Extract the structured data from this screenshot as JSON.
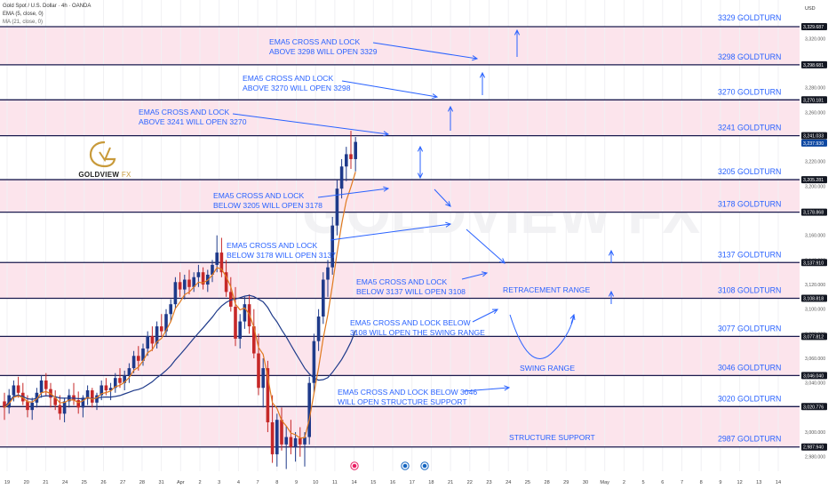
{
  "header": {
    "title": "Gold Spot / U.S. Dollar · 4h · OANDA",
    "ema": "EMA (5, close, 0)",
    "ma": "MA (21, close, 0)"
  },
  "logo": {
    "main": "GOLDVIEW",
    "suffix": "FX"
  },
  "watermark": "GOLDVIEW FX",
  "currency_label": "USD",
  "colors": {
    "zone_fill": "#fce4ec",
    "level_line": "#1a1a4e",
    "annotation": "#2962ff",
    "candle_up": "#1e3a8a",
    "candle_down": "#c62828",
    "ema": "#e07a1f",
    "ma": "#1e3a8a",
    "price_tag": "#0d47a1",
    "tag_dark": "#131722"
  },
  "chart_data": {
    "type": "candlestick",
    "ylim": [
      2970,
      3345
    ],
    "y_ticks": [
      2980,
      3000,
      3020,
      3040,
      3060,
      3080,
      3100,
      3120,
      3140,
      3160,
      3180,
      3200,
      3220,
      3240,
      3260,
      3280,
      3300,
      3320
    ],
    "y_tick_labels": [
      "2,980.000",
      "3,000.000",
      "3,020.000",
      "3,040.000",
      "3,060.000",
      "3,080.000",
      "3,100.000",
      "3,120.000",
      "3,140.000",
      "3,160.000",
      "3,180.000",
      "3,200.000",
      "3,220.000",
      "3,240.000",
      "3,260.000",
      "3,280.000",
      "3,300.000",
      "3,320.000"
    ],
    "x_labels": [
      "19",
      "20",
      "21",
      "24",
      "25",
      "26",
      "27",
      "28",
      "31",
      "Apr",
      "2",
      "3",
      "4",
      "7",
      "8",
      "9",
      "10",
      "11",
      "14",
      "15",
      "16",
      "17",
      "18",
      "21",
      "22",
      "23",
      "24",
      "25",
      "28",
      "29",
      "30",
      "May",
      "2",
      "5",
      "6",
      "7",
      "8",
      "9",
      "12",
      "13",
      "14"
    ],
    "levels": [
      {
        "price": 3329.687,
        "tag": "3,329.687",
        "label": "3329 GOLDTURN"
      },
      {
        "price": 3298.681,
        "tag": "3,298.681",
        "label": "3298 GOLDTURN"
      },
      {
        "price": 3270.181,
        "tag": "3,270.181",
        "label": "3270 GOLDTURN"
      },
      {
        "price": 3241.033,
        "tag": "3,241.033",
        "label": "3241 GOLDTURN"
      },
      {
        "price": 3205.281,
        "tag": "3,205.281",
        "label": "3205 GOLDTURN"
      },
      {
        "price": 3178.868,
        "tag": "3,178.868",
        "label": "3178 GOLDTURN"
      },
      {
        "price": 3137.91,
        "tag": "3,137.910",
        "label": "3137 GOLDTURN"
      },
      {
        "price": 3108.818,
        "tag": "3,108.818",
        "label": "3108 GOLDTURN"
      },
      {
        "price": 3077.812,
        "tag": "3,077.812",
        "label": "3077 GOLDTURN"
      },
      {
        "price": 3046.04,
        "tag": "3,046.040",
        "label": "3046 GOLDTURN"
      },
      {
        "price": 3020.776,
        "tag": "3,020.776",
        "label": "3020 GOLDTURN"
      },
      {
        "price": 2987.94,
        "tag": "2,987.940",
        "label": "2987 GOLDTURN"
      }
    ],
    "zones": [
      [
        3298.681,
        3329.687
      ],
      [
        3241.033,
        3270.181
      ],
      [
        3178.868,
        3205.281
      ],
      [
        3108.818,
        3137.91
      ],
      [
        3046.04,
        3077.812
      ],
      [
        2987.94,
        3020.776
      ]
    ],
    "current_price": {
      "value": 3237.93,
      "tag": "3,237.930"
    },
    "zone_labels": [
      "RETRACEMENT RANGE",
      "SWING RANGE",
      "STRUCTURE SUPPORT"
    ],
    "annotations": [
      [
        "EMA5 CROSS AND LOCK",
        "ABOVE 3298 WILL OPEN 3329"
      ],
      [
        "EMA5 CROSS AND LOCK",
        "ABOVE 3270 WILL OPEN 3298"
      ],
      [
        "EMA5 CROSS AND LOCK",
        "ABOVE 3241 WILL OPEN 3270"
      ],
      [
        "EMA5 CROSS AND LOCK",
        "BELOW 3205 WILL OPEN 3178"
      ],
      [
        "EMA5 CROSS AND LOCK",
        "BELOW 3178 WILL OPEN 3137"
      ],
      [
        "EMA5 CROSS AND LOCK",
        "BELOW 3137 WILL OPEN 3108"
      ],
      [
        "EMA5 CROSS AND LOCK BELOW",
        "3108 WILL OPEN THE SWING RANGE"
      ],
      [
        "EMA5 CROSS AND LOCK BELOW 3046",
        "WILL OPEN STRUCTURE SUPPORT"
      ]
    ],
    "candles_ohlc": [
      [
        3025,
        3032,
        3010,
        3020
      ],
      [
        3020,
        3035,
        3015,
        3030
      ],
      [
        3030,
        3042,
        3025,
        3038
      ],
      [
        3038,
        3045,
        3028,
        3032
      ],
      [
        3032,
        3040,
        3022,
        3025
      ],
      [
        3025,
        3030,
        3012,
        3018
      ],
      [
        3018,
        3028,
        3010,
        3024
      ],
      [
        3024,
        3036,
        3020,
        3032
      ],
      [
        3032,
        3046,
        3028,
        3042
      ],
      [
        3042,
        3048,
        3030,
        3035
      ],
      [
        3035,
        3040,
        3020,
        3028
      ],
      [
        3028,
        3034,
        3018,
        3022
      ],
      [
        3022,
        3030,
        3010,
        3015
      ],
      [
        3015,
        3028,
        3008,
        3025
      ],
      [
        3025,
        3035,
        3020,
        3030
      ],
      [
        3030,
        3040,
        3022,
        3026
      ],
      [
        3026,
        3033,
        3015,
        3020
      ],
      [
        3020,
        3030,
        3012,
        3028
      ],
      [
        3028,
        3038,
        3022,
        3034
      ],
      [
        3034,
        3036,
        3020,
        3024
      ],
      [
        3024,
        3032,
        3018,
        3030
      ],
      [
        3030,
        3042,
        3026,
        3038
      ],
      [
        3038,
        3044,
        3030,
        3034
      ],
      [
        3034,
        3040,
        3026,
        3036
      ],
      [
        3036,
        3048,
        3032,
        3044
      ],
      [
        3044,
        3052,
        3036,
        3040
      ],
      [
        3040,
        3050,
        3034,
        3046
      ],
      [
        3046,
        3056,
        3040,
        3052
      ],
      [
        3052,
        3066,
        3048,
        3062
      ],
      [
        3062,
        3070,
        3050,
        3058
      ],
      [
        3058,
        3072,
        3054,
        3068
      ],
      [
        3068,
        3082,
        3062,
        3078
      ],
      [
        3078,
        3086,
        3066,
        3072
      ],
      [
        3072,
        3090,
        3068,
        3086
      ],
      [
        3086,
        3096,
        3078,
        3082
      ],
      [
        3082,
        3100,
        3078,
        3096
      ],
      [
        3096,
        3108,
        3090,
        3104
      ],
      [
        3104,
        3126,
        3100,
        3122
      ],
      [
        3122,
        3130,
        3110,
        3116
      ],
      [
        3116,
        3128,
        3108,
        3124
      ],
      [
        3124,
        3132,
        3112,
        3118
      ],
      [
        3118,
        3130,
        3114,
        3126
      ],
      [
        3126,
        3136,
        3118,
        3130
      ],
      [
        3130,
        3134,
        3116,
        3120
      ],
      [
        3120,
        3132,
        3114,
        3128
      ],
      [
        3128,
        3140,
        3122,
        3136
      ],
      [
        3136,
        3160,
        3130,
        3146
      ],
      [
        3146,
        3158,
        3126,
        3130
      ],
      [
        3130,
        3140,
        3110,
        3114
      ],
      [
        3114,
        3126,
        3098,
        3102
      ],
      [
        3102,
        3118,
        3070,
        3076
      ],
      [
        3076,
        3096,
        3068,
        3090
      ],
      [
        3090,
        3110,
        3084,
        3104
      ],
      [
        3104,
        3112,
        3080,
        3086
      ],
      [
        3086,
        3100,
        3060,
        3064
      ],
      [
        3064,
        3080,
        3030,
        3036
      ],
      [
        3036,
        3060,
        3020,
        3052
      ],
      [
        3052,
        3058,
        3000,
        3008
      ],
      [
        3008,
        3030,
        2975,
        2982
      ],
      [
        2982,
        3015,
        2972,
        3010
      ],
      [
        3010,
        3020,
        2985,
        2990
      ],
      [
        2990,
        3005,
        2970,
        2996
      ],
      [
        2996,
        3010,
        2982,
        2988
      ],
      [
        2988,
        3000,
        2976,
        2995
      ],
      [
        2995,
        3004,
        2980,
        2990
      ],
      [
        2990,
        3000,
        2972,
        2996
      ],
      [
        2996,
        3045,
        2990,
        3040
      ],
      [
        3040,
        3080,
        3032,
        3074
      ],
      [
        3074,
        3100,
        3066,
        3094
      ],
      [
        3094,
        3130,
        3088,
        3124
      ],
      [
        3124,
        3140,
        3110,
        3134
      ],
      [
        3134,
        3175,
        3128,
        3168
      ],
      [
        3168,
        3205,
        3160,
        3198
      ],
      [
        3198,
        3222,
        3190,
        3216
      ],
      [
        3216,
        3232,
        3204,
        3226
      ],
      [
        3226,
        3245,
        3214,
        3222
      ],
      [
        3222,
        3240,
        3212,
        3236
      ]
    ]
  }
}
